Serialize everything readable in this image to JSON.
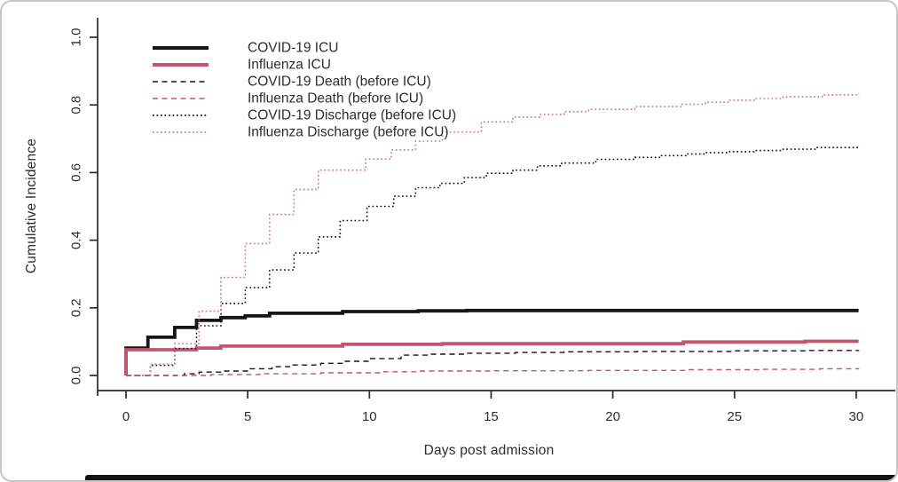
{
  "figure": {
    "background": "#ffffff",
    "border_color": "#c6c6c6",
    "text_color": "#2d2d2d"
  },
  "chart_data": {
    "type": "line",
    "subtype": "step-function-cumulative-incidence",
    "title": "",
    "xlabel": "Days post admission",
    "ylabel": "Cumulative Incidence",
    "xlim": [
      0,
      30
    ],
    "ylim": [
      0,
      1
    ],
    "grid": false,
    "x_ticks": [
      0,
      5,
      10,
      15,
      20,
      25,
      30
    ],
    "x_tick_labels": [
      "0",
      "5",
      "10",
      "15",
      "20",
      "25",
      "30"
    ],
    "y_ticks": [
      0,
      0.2,
      0.4,
      0.6,
      0.8,
      1.0
    ],
    "y_tick_labels": [
      "0.0",
      "0.2",
      "0.4",
      "0.6",
      "0.8",
      "1.0"
    ],
    "legend_position": "top-left-inside",
    "colors": {
      "covid_black": "#151515",
      "influenza_red": "#c3566c",
      "influenza_red_dotted": "#cf7487"
    },
    "series": [
      {
        "name": "COVID-19 ICU",
        "color": "#151515",
        "style": "solid",
        "width": 3.8,
        "points": [
          [
            0,
            0
          ],
          [
            0,
            0.081
          ],
          [
            0.9,
            0.113
          ],
          [
            2,
            0.142
          ],
          [
            2.9,
            0.163
          ],
          [
            3.9,
            0.171
          ],
          [
            4.9,
            0.176
          ],
          [
            5.9,
            0.184
          ],
          [
            8.9,
            0.189
          ],
          [
            12,
            0.191
          ],
          [
            14,
            0.192
          ],
          [
            30.1,
            0.192
          ]
        ]
      },
      {
        "name": "Influenza ICU",
        "color": "#c3566c",
        "style": "solid",
        "width": 3.8,
        "points": [
          [
            0,
            0
          ],
          [
            0,
            0.076
          ],
          [
            2.9,
            0.081
          ],
          [
            3.9,
            0.087
          ],
          [
            8.9,
            0.092
          ],
          [
            13,
            0.094
          ],
          [
            22.9,
            0.099
          ],
          [
            27.9,
            0.101
          ],
          [
            30.1,
            0.101
          ]
        ]
      },
      {
        "name": "COVID-19 Death (before ICU)",
        "color": "#151515",
        "style": "dashed",
        "width": 1.4,
        "points": [
          [
            0,
            0
          ],
          [
            2.4,
            0.005
          ],
          [
            3,
            0.01
          ],
          [
            4,
            0.013
          ],
          [
            5.1,
            0.02
          ],
          [
            6,
            0.026
          ],
          [
            6.8,
            0.031
          ],
          [
            8,
            0.036
          ],
          [
            9,
            0.042
          ],
          [
            10,
            0.05
          ],
          [
            11.3,
            0.06
          ],
          [
            12.5,
            0.063
          ],
          [
            14,
            0.066
          ],
          [
            16,
            0.068
          ],
          [
            18,
            0.07
          ],
          [
            21,
            0.071
          ],
          [
            25,
            0.073
          ],
          [
            28,
            0.074
          ],
          [
            30.1,
            0.075
          ]
        ]
      },
      {
        "name": "Influenza Death (before ICU)",
        "color": "#c3566c",
        "style": "dashed",
        "width": 1.4,
        "points": [
          [
            0,
            0
          ],
          [
            3.5,
            0.003
          ],
          [
            5.5,
            0.005
          ],
          [
            8,
            0.008
          ],
          [
            10.5,
            0.011
          ],
          [
            12,
            0.013
          ],
          [
            15,
            0.014
          ],
          [
            19,
            0.015
          ],
          [
            23,
            0.017
          ],
          [
            26,
            0.018
          ],
          [
            28.5,
            0.02
          ],
          [
            30.1,
            0.021
          ]
        ]
      },
      {
        "name": "COVID-19 Discharge (before ICU)",
        "color": "#151515",
        "style": "dotted",
        "width": 1.6,
        "points": [
          [
            0,
            0
          ],
          [
            1,
            0.03
          ],
          [
            2,
            0.08
          ],
          [
            2.9,
            0.147
          ],
          [
            3.9,
            0.213
          ],
          [
            4.9,
            0.26
          ],
          [
            5.9,
            0.312
          ],
          [
            6.9,
            0.362
          ],
          [
            7.9,
            0.41
          ],
          [
            8.8,
            0.458
          ],
          [
            9.9,
            0.5
          ],
          [
            11,
            0.53
          ],
          [
            11.9,
            0.555
          ],
          [
            12.9,
            0.568
          ],
          [
            13.9,
            0.585
          ],
          [
            14.8,
            0.598
          ],
          [
            15.9,
            0.607
          ],
          [
            16.9,
            0.62
          ],
          [
            17.9,
            0.628
          ],
          [
            19.3,
            0.639
          ],
          [
            20.9,
            0.645
          ],
          [
            22,
            0.65
          ],
          [
            23,
            0.655
          ],
          [
            23.8,
            0.659
          ],
          [
            24.8,
            0.662
          ],
          [
            25.8,
            0.665
          ],
          [
            27,
            0.669
          ],
          [
            28.4,
            0.674
          ],
          [
            30.1,
            0.68
          ]
        ]
      },
      {
        "name": "Influenza Discharge (before ICU)",
        "color": "#cf7487",
        "style": "dotted",
        "width": 1.6,
        "points": [
          [
            0,
            0
          ],
          [
            1,
            0.033
          ],
          [
            2,
            0.094
          ],
          [
            3,
            0.19
          ],
          [
            3.9,
            0.29
          ],
          [
            4.9,
            0.39
          ],
          [
            5.9,
            0.476
          ],
          [
            6.9,
            0.55
          ],
          [
            7.9,
            0.607
          ],
          [
            9.85,
            0.64
          ],
          [
            10.9,
            0.667
          ],
          [
            11.9,
            0.693
          ],
          [
            13,
            0.72
          ],
          [
            14.6,
            0.75
          ],
          [
            15.9,
            0.764
          ],
          [
            17,
            0.772
          ],
          [
            18,
            0.78
          ],
          [
            19,
            0.787
          ],
          [
            20.9,
            0.795
          ],
          [
            22.8,
            0.802
          ],
          [
            23.8,
            0.808
          ],
          [
            24.8,
            0.814
          ],
          [
            25.8,
            0.819
          ],
          [
            27,
            0.824
          ],
          [
            28.6,
            0.83
          ],
          [
            30.1,
            0.835
          ]
        ]
      }
    ]
  }
}
